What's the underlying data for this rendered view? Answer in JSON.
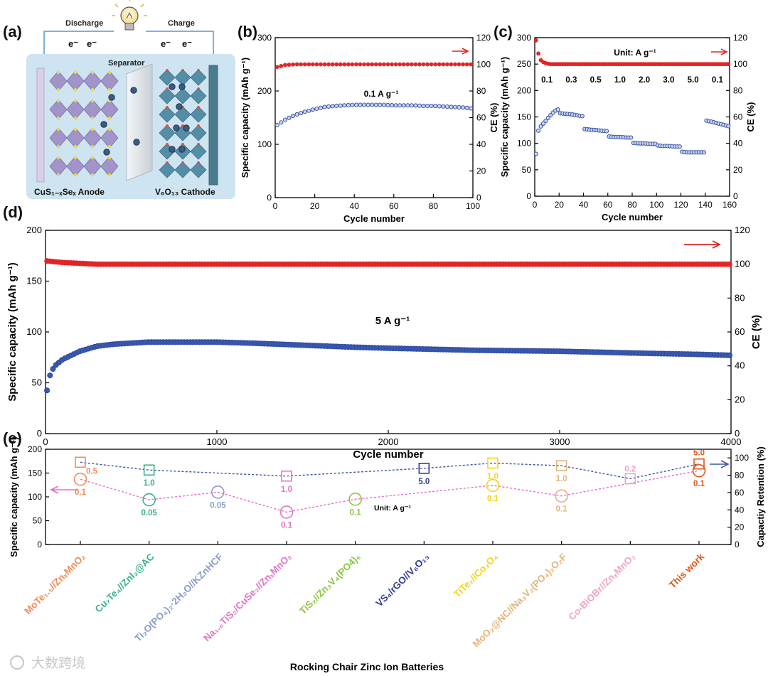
{
  "panel_labels": {
    "a": "(a)",
    "b": "(b)",
    "c": "(c)",
    "d": "(d)",
    "e": "(e)"
  },
  "schematic": {
    "discharge": "Discharge",
    "charge": "Charge",
    "electron": "e⁻",
    "separator": "Separator",
    "anode_label": "CuS₁₋ₓSeₓ Anode",
    "cathode_label": "V₆O₁₃ Cathode",
    "colors": {
      "panel_bg": "#cfe4f1",
      "anode_layer": "#9b85c2",
      "cathode_layer": "#3e7f9a",
      "ion": "#3b5b86"
    }
  },
  "watermark": "大数跨境",
  "colors": {
    "capacity": "#2e4a9e",
    "ce": "#e32424",
    "arrow": "#e32424",
    "e_pink": "#e86bc7",
    "e_blue": "#3b56a8",
    "e_arrow_pink": "#e86bc7",
    "e_arrow_blue": "#3b56a8"
  },
  "chart_data": [
    {
      "id": "b",
      "type": "scatter",
      "xlabel": "Cycle number",
      "ylabel": "Specific capacity (mAh g⁻¹)",
      "ylabel_right": "CE (%)",
      "xlim": [
        0,
        100
      ],
      "ylim": [
        0,
        300
      ],
      "ylim_right": [
        0,
        120
      ],
      "xticks": [
        0,
        20,
        40,
        60,
        80,
        100
      ],
      "yticks": [
        0,
        100,
        200,
        300
      ],
      "yticks_right": [
        0,
        20,
        40,
        60,
        80,
        100,
        120
      ],
      "annotation": "0.1 A g⁻¹",
      "series": [
        {
          "name": "Specific capacity",
          "axis": "left",
          "x": [
            1,
            5,
            10,
            15,
            20,
            25,
            30,
            35,
            40,
            45,
            50,
            55,
            60,
            65,
            70,
            75,
            80,
            85,
            90,
            95,
            100
          ],
          "values": [
            136,
            146,
            155,
            161,
            166,
            170,
            172,
            173,
            174,
            174,
            174,
            174,
            173,
            173,
            173,
            172,
            172,
            171,
            170,
            169,
            167
          ]
        },
        {
          "name": "CE",
          "axis": "right",
          "x": [
            1,
            5,
            10,
            20,
            30,
            40,
            50,
            60,
            70,
            80,
            90,
            100
          ],
          "values": [
            98,
            99.5,
            100,
            100,
            100,
            100,
            100,
            100,
            100,
            100,
            100,
            100
          ]
        }
      ]
    },
    {
      "id": "c",
      "type": "scatter",
      "xlabel": "Cycle number",
      "ylabel": "Specific capacity (mAh g⁻¹)",
      "ylabel_right": "CE (%)",
      "xlim": [
        0,
        160
      ],
      "ylim": [
        0,
        300
      ],
      "ylim_right": [
        0,
        120
      ],
      "xticks": [
        0,
        20,
        40,
        60,
        80,
        100,
        120,
        140,
        160
      ],
      "yticks": [
        0,
        50,
        100,
        150,
        200,
        250,
        300
      ],
      "yticks_right": [
        0,
        20,
        40,
        60,
        80,
        100,
        120
      ],
      "annotation": "Unit: A g⁻¹",
      "rate_labels": [
        "0.1",
        "0.3",
        "0.5",
        "1.0",
        "2.0",
        "3.0",
        "5.0",
        "0.1"
      ],
      "series": [
        {
          "name": "Specific capacity",
          "axis": "left",
          "x": [
            1,
            2,
            3,
            5,
            8,
            11,
            14,
            17,
            20,
            21,
            25,
            30,
            35,
            40,
            41,
            45,
            50,
            55,
            60,
            61,
            65,
            70,
            75,
            80,
            81,
            85,
            90,
            95,
            100,
            101,
            105,
            110,
            115,
            120,
            121,
            125,
            130,
            135,
            140,
            141,
            145,
            150,
            155,
            160
          ],
          "values": [
            80,
            118,
            124,
            132,
            140,
            148,
            156,
            162,
            165,
            157,
            156,
            155,
            153,
            151,
            127,
            126,
            125,
            124,
            123,
            113,
            112,
            112,
            111,
            111,
            101,
            100,
            100,
            99,
            99,
            96,
            95,
            95,
            94,
            94,
            84,
            83,
            83,
            83,
            83,
            143,
            141,
            138,
            135,
            132
          ]
        },
        {
          "name": "CE",
          "axis": "right",
          "x": [
            1,
            2,
            3,
            4,
            5,
            6,
            8,
            10,
            12,
            15,
            20,
            40,
            60,
            80,
            100,
            120,
            140,
            160
          ],
          "values": [
            118,
            112,
            108,
            105,
            103,
            102,
            101,
            100.5,
            100,
            100,
            100,
            100,
            100,
            100,
            100,
            100,
            100,
            100
          ]
        }
      ]
    },
    {
      "id": "d",
      "type": "scatter",
      "xlabel": "Cycle number",
      "ylabel": "Specific capacity (mAh g⁻¹)",
      "ylabel_right": "CE (%)",
      "xlim": [
        0,
        4000
      ],
      "ylim": [
        0,
        200
      ],
      "ylim_right": [
        0,
        120
      ],
      "xticks": [
        0,
        1000,
        2000,
        3000,
        4000
      ],
      "yticks": [
        0,
        50,
        100,
        150,
        200
      ],
      "yticks_right": [
        0,
        20,
        40,
        60,
        80,
        100,
        120
      ],
      "annotation": "5 A g⁻¹",
      "series": [
        {
          "name": "Specific capacity",
          "axis": "left",
          "x": [
            1,
            20,
            50,
            100,
            150,
            200,
            300,
            400,
            500,
            600,
            800,
            1000,
            1200,
            1500,
            1800,
            2000,
            2500,
            3000,
            3500,
            3800,
            4000
          ],
          "values": [
            34,
            55,
            66,
            73,
            77,
            81,
            86,
            88,
            89,
            90,
            90,
            90,
            89,
            87,
            85,
            84,
            82,
            81,
            79,
            78,
            77
          ]
        },
        {
          "name": "CE",
          "axis": "right",
          "x": [
            1,
            50,
            100,
            200,
            300,
            500,
            1000,
            1500,
            2000,
            3000,
            4000
          ],
          "values": [
            102,
            101.5,
            101,
            100.5,
            100,
            100,
            100,
            100,
            100,
            100,
            100
          ]
        }
      ]
    },
    {
      "id": "e",
      "type": "line",
      "xlabel": "Rocking Chair Zinc Ion Batteries",
      "ylabel": "Specific capacity (mAh g⁻¹)",
      "ylabel_right": "Capactiy Retention (%)",
      "ylim": [
        0,
        200
      ],
      "ylim_right": [
        0,
        110
      ],
      "yticks": [
        0,
        50,
        100,
        150,
        200
      ],
      "yticks_right": [
        0,
        20,
        40,
        60,
        80,
        100
      ],
      "annotation": "Unit: A g⁻¹",
      "categories": [
        "MoTe₁.₅//ZnₓMnO₂",
        "Cu₇Te₄//ZnI₂@AC",
        "Ti₂O(PO₄)₂·2H₂O//KZnHCF",
        "Na₁.₆TiS₂/CuSe₂//ZnₓMnO₂",
        "TiS₂//Zn₃V₄(PO4)₆",
        "VS₄/rGO//V₆O₁₃",
        "TiTe₂//Co₃O₄",
        "MoO₂@NC//Na₃V₂(PO₄)₂O₂F",
        "Co-BiOBr//ZnₓMnO₂",
        "This work"
      ],
      "category_colors": [
        "#f08c5c",
        "#3fae8c",
        "#8a9bc8",
        "#e075c5",
        "#8cc63e",
        "#2e3f8f",
        "#f5d21e",
        "#e3b37a",
        "#f2a5bd",
        "#e0571d"
      ],
      "series": [
        {
          "name": "Specific capacity",
          "axis": "left",
          "marker": "circle",
          "values": [
            137,
            94,
            null,
            68,
            95,
            null,
            124,
            102,
            null,
            155
          ],
          "labels": [
            "0.1",
            "0.05",
            "",
            "0.1",
            "0.1",
            "",
            "0.1",
            "0.1",
            "",
            "0.1"
          ]
        },
        {
          "name": "Specific capacity (no-retention)",
          "axis": "left",
          "marker": "circle",
          "values": [
            null,
            null,
            110,
            null,
            null,
            null,
            null,
            null,
            null,
            null
          ],
          "labels": [
            "",
            "",
            "0.05",
            "",
            "",
            "",
            "",
            "",
            "",
            ""
          ]
        },
        {
          "name": "Capacity retention",
          "axis": "right",
          "marker": "square",
          "values": [
            95,
            86,
            null,
            79,
            null,
            88,
            94,
            91,
            76,
            93
          ],
          "labels": [
            "0.5",
            "1.0",
            "",
            "1.0",
            "",
            "5.0",
            "1.0",
            "1.0",
            "0.2",
            "5.0"
          ]
        }
      ]
    }
  ]
}
